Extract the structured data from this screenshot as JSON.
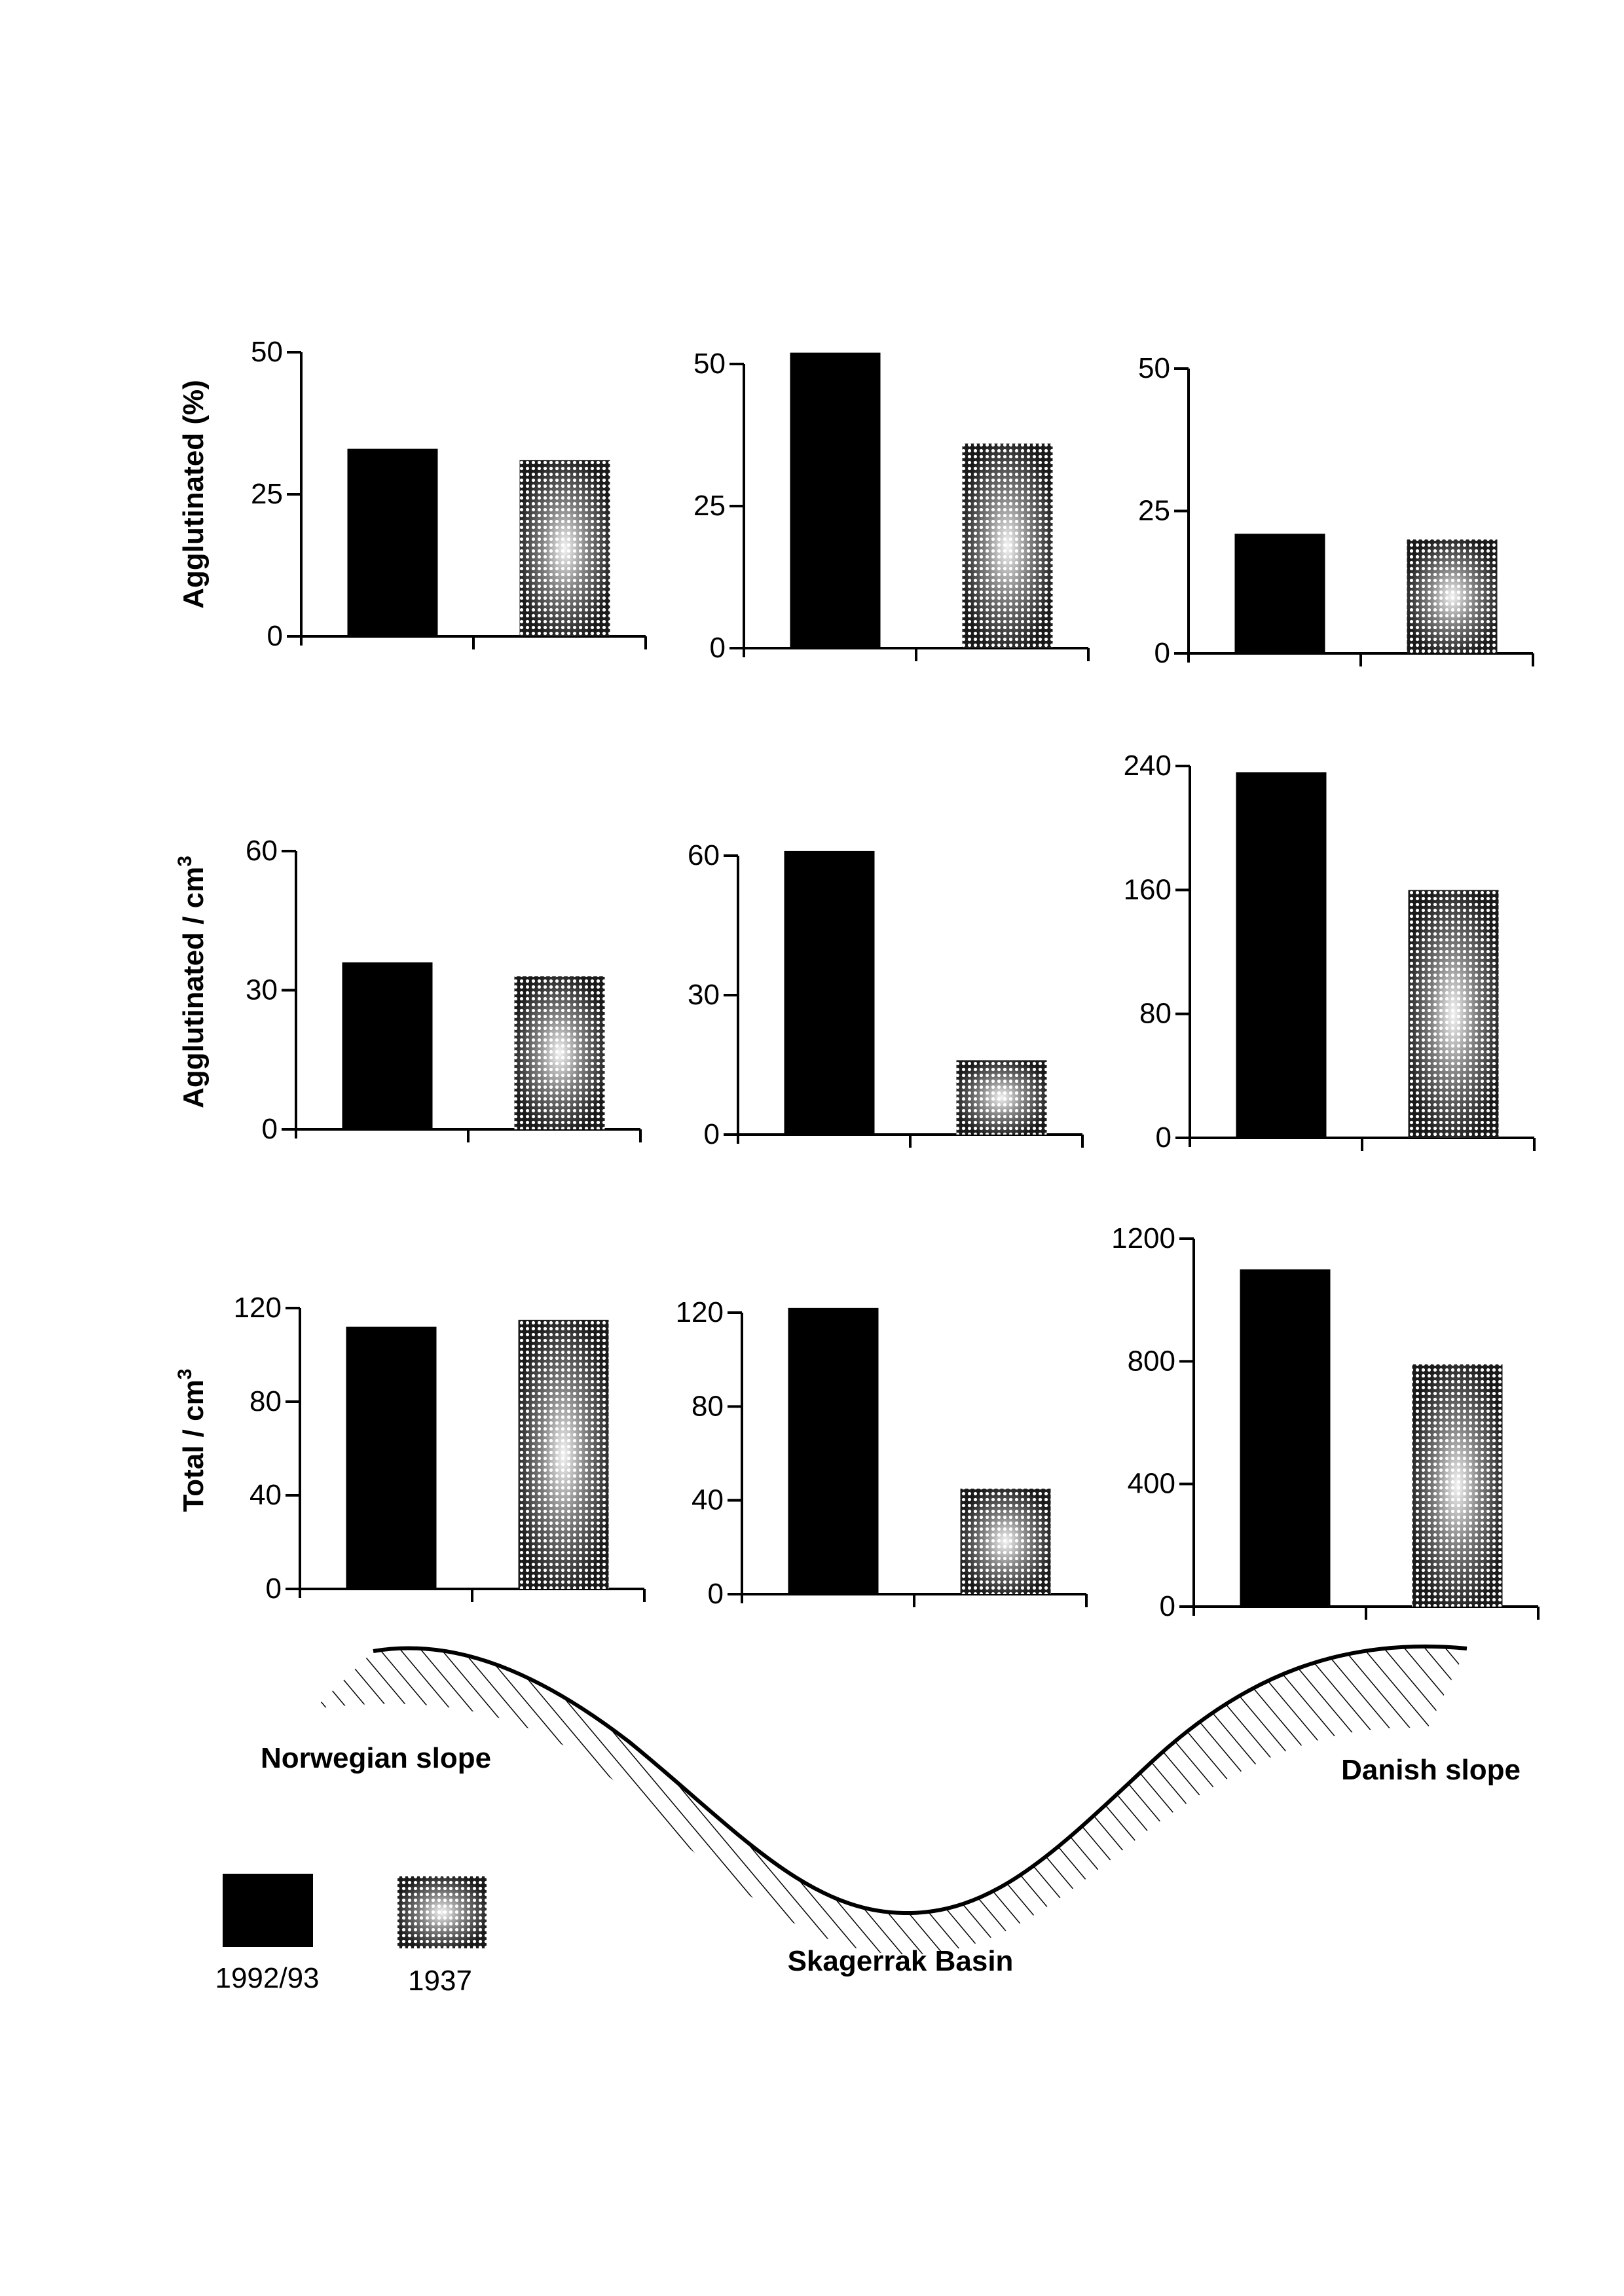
{
  "colors": {
    "bar_1992": "#000000",
    "bar_1937": "#1a1a1a",
    "axis": "#000000"
  },
  "row_labels": [
    "Agglutinated (%)",
    "Agglutinated / cm",
    "Total / cm"
  ],
  "row_label_superscripts": [
    "",
    "3",
    "3"
  ],
  "profile": {
    "norwegian": "Norwegian slope",
    "basin": "Skagerrak Basin",
    "danish": "Danish slope"
  },
  "legend": {
    "series_1992": "1992/93",
    "series_1937": "1937"
  },
  "chart_data": [
    {
      "type": "bar",
      "row": 0,
      "col": 0,
      "ylabel": "Agglutinated (%)",
      "series": [
        {
          "name": "1992/93",
          "values": [
            33
          ]
        },
        {
          "name": "1937",
          "values": [
            31
          ]
        }
      ],
      "ylim": [
        0,
        50
      ],
      "yticks": [
        "0",
        "25",
        "50"
      ]
    },
    {
      "type": "bar",
      "row": 0,
      "col": 1,
      "ylabel": "",
      "series": [
        {
          "name": "1992/93",
          "values": [
            52
          ]
        },
        {
          "name": "1937",
          "values": [
            36
          ]
        }
      ],
      "ylim": [
        0,
        50
      ],
      "yticks": [
        "0",
        "25",
        "50"
      ]
    },
    {
      "type": "bar",
      "row": 0,
      "col": 2,
      "ylabel": "",
      "series": [
        {
          "name": "1992/93",
          "values": [
            21
          ]
        },
        {
          "name": "1937",
          "values": [
            20
          ]
        }
      ],
      "ylim": [
        0,
        50
      ],
      "yticks": [
        "0",
        "25",
        "50"
      ]
    },
    {
      "type": "bar",
      "row": 1,
      "col": 0,
      "ylabel": "Agglutinated / cm3",
      "series": [
        {
          "name": "1992/93",
          "values": [
            36
          ]
        },
        {
          "name": "1937",
          "values": [
            33
          ]
        }
      ],
      "ylim": [
        0,
        60
      ],
      "yticks": [
        "0",
        "30",
        "60"
      ]
    },
    {
      "type": "bar",
      "row": 1,
      "col": 1,
      "ylabel": "",
      "series": [
        {
          "name": "1992/93",
          "values": [
            61
          ]
        },
        {
          "name": "1937",
          "values": [
            16
          ]
        }
      ],
      "ylim": [
        0,
        60
      ],
      "yticks": [
        "0",
        "30",
        "60"
      ]
    },
    {
      "type": "bar",
      "row": 1,
      "col": 2,
      "ylabel": "",
      "series": [
        {
          "name": "1992/93",
          "values": [
            236
          ]
        },
        {
          "name": "1937",
          "values": [
            160
          ]
        }
      ],
      "ylim": [
        0,
        240
      ],
      "yticks": [
        "0",
        "80",
        "160",
        "240"
      ]
    },
    {
      "type": "bar",
      "row": 2,
      "col": 0,
      "ylabel": "Total / cm3",
      "series": [
        {
          "name": "1992/93",
          "values": [
            112
          ]
        },
        {
          "name": "1937",
          "values": [
            115
          ]
        }
      ],
      "ylim": [
        0,
        120
      ],
      "yticks": [
        "0",
        "40",
        "80",
        "120"
      ]
    },
    {
      "type": "bar",
      "row": 2,
      "col": 1,
      "ylabel": "",
      "series": [
        {
          "name": "1992/93",
          "values": [
            122
          ]
        },
        {
          "name": "1937",
          "values": [
            45
          ]
        }
      ],
      "ylim": [
        0,
        120
      ],
      "yticks": [
        "0",
        "40",
        "80",
        "120"
      ]
    },
    {
      "type": "bar",
      "row": 2,
      "col": 2,
      "ylabel": "",
      "series": [
        {
          "name": "1992/93",
          "values": [
            1100
          ]
        },
        {
          "name": "1937",
          "values": [
            790
          ]
        }
      ],
      "ylim": [
        0,
        1200
      ],
      "yticks": [
        "0",
        "400",
        "800",
        "1200"
      ]
    }
  ]
}
